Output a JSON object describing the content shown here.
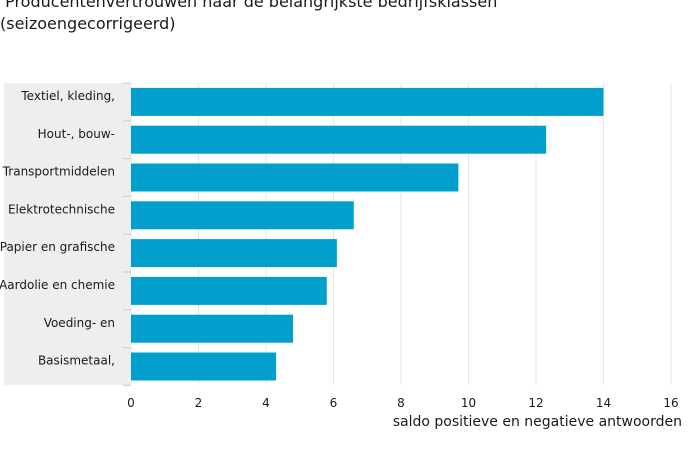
{
  "chart_data": {
    "type": "bar",
    "orientation": "horizontal",
    "title": " Producentenvertrouwen naar de belangrijkste bedrijfsklassen\n(seizoengecorrigeerd)",
    "categories": [
      "Textiel, kleding,",
      "Hout-, bouw-",
      "Transportmiddelen",
      "Elektrotechnische",
      "Papier en grafische",
      "Aardolie en chemie",
      "Voeding- en",
      "Basismetaal,"
    ],
    "values": [
      14.0,
      12.3,
      9.7,
      6.6,
      6.1,
      5.8,
      4.8,
      4.3
    ],
    "xlabel": "saldo positieve en negatieve antwoorden",
    "ylabel": "",
    "xlim": [
      0,
      16
    ],
    "xticks": [
      0,
      2,
      4,
      6,
      8,
      10,
      12,
      14,
      16
    ],
    "grid": "vertical",
    "bar_color": "#009fcc",
    "label_panel_color": "#eeeeee",
    "grid_color": "#e6e6e6"
  }
}
